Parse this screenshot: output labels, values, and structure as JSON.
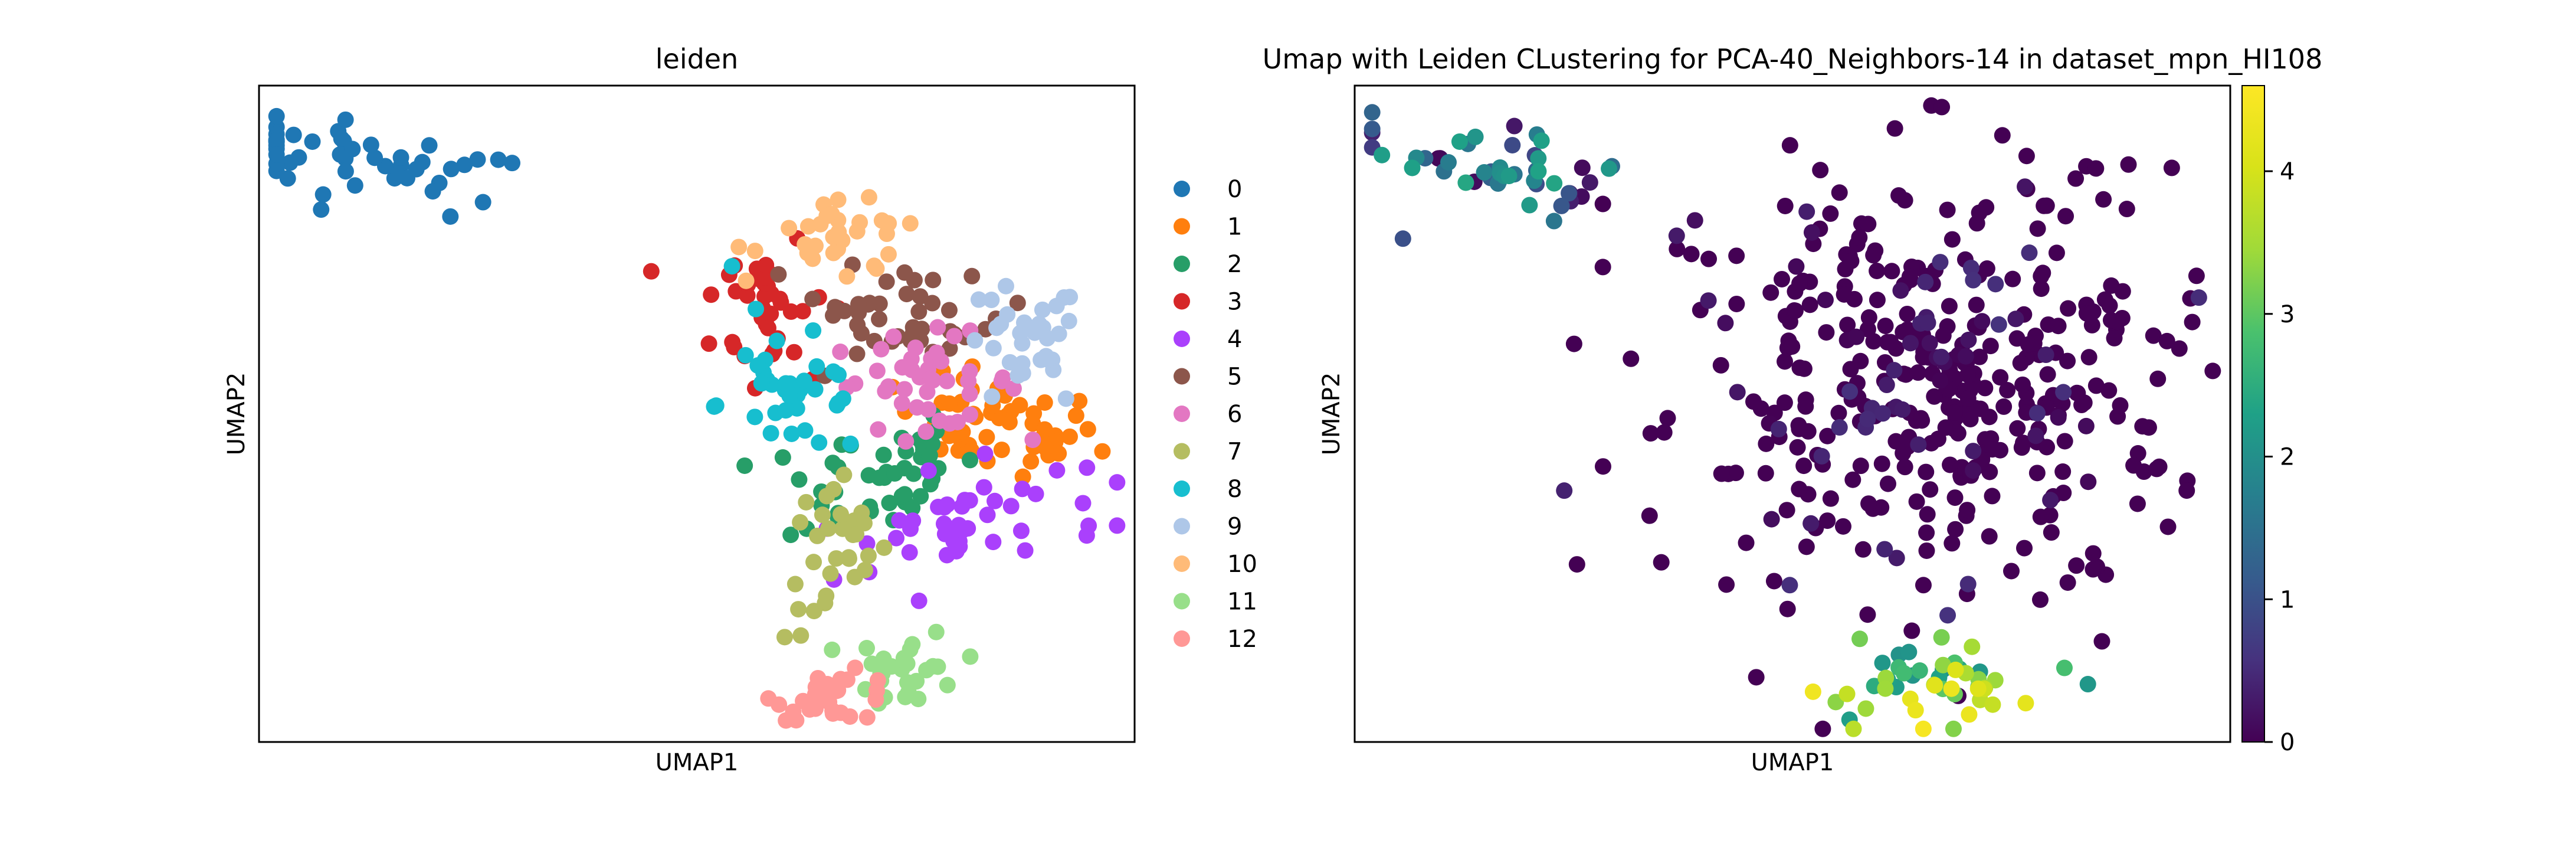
{
  "chart_data": [
    {
      "type": "scatter",
      "title": "leiden",
      "xlabel": "UMAP1",
      "ylabel": "UMAP2",
      "xlim": [
        0,
        100
      ],
      "ylim": [
        0,
        100
      ],
      "legend": {
        "placement": "right-outside",
        "entries": [
          "0",
          "1",
          "2",
          "3",
          "4",
          "5",
          "6",
          "7",
          "8",
          "9",
          "10",
          "11",
          "12"
        ],
        "colors": [
          "#1f77b4",
          "#ff7f0e",
          "#279e68",
          "#d62728",
          "#aa40fc",
          "#8c564b",
          "#e377c2",
          "#b5bd61",
          "#17becf",
          "#aec7e8",
          "#ffbb78",
          "#98df8a",
          "#ff9896"
        ]
      },
      "series": [
        {
          "name": "0",
          "count": 48,
          "center": [
            12,
            88
          ],
          "spread": [
            10,
            3.0
          ],
          "angle": -14
        },
        {
          "name": "1",
          "count": 55,
          "center": [
            84,
            48
          ],
          "spread": [
            6,
            3.5
          ],
          "angle": -8
        },
        {
          "name": "2",
          "count": 45,
          "center": [
            70,
            41
          ],
          "spread": [
            6,
            4.5
          ],
          "angle": 15
        },
        {
          "name": "3",
          "count": 38,
          "center": [
            58,
            67
          ],
          "spread": [
            3.5,
            6
          ],
          "angle": 10
        },
        {
          "name": "4",
          "count": 45,
          "center": [
            80,
            33
          ],
          "spread": [
            8,
            4
          ],
          "angle": 20
        },
        {
          "name": "5",
          "count": 42,
          "center": [
            74,
            65
          ],
          "spread": [
            5.5,
            3.5
          ],
          "angle": -20
        },
        {
          "name": "6",
          "count": 42,
          "center": [
            76,
            55
          ],
          "spread": [
            5.5,
            3.5
          ],
          "angle": 0
        },
        {
          "name": "7",
          "count": 32,
          "center": [
            66,
            28
          ],
          "spread": [
            3.0,
            6.5
          ],
          "angle": 0
        },
        {
          "name": "8",
          "count": 36,
          "center": [
            61,
            54
          ],
          "spread": [
            4.5,
            6
          ],
          "angle": 15
        },
        {
          "name": "9",
          "count": 32,
          "center": [
            87,
            60
          ],
          "spread": [
            3.5,
            5
          ],
          "angle": 0
        },
        {
          "name": "10",
          "count": 32,
          "center": [
            67,
            76
          ],
          "spread": [
            4.5,
            3.0
          ],
          "angle": -10
        },
        {
          "name": "11",
          "count": 30,
          "center": [
            74,
            11
          ],
          "spread": [
            3.0,
            3.0
          ],
          "angle": 0
        },
        {
          "name": "12",
          "count": 30,
          "center": [
            66,
            7
          ],
          "spread": [
            3.5,
            1.8
          ],
          "angle": 0
        }
      ]
    },
    {
      "type": "scatter",
      "title": "Umap with Leiden CLustering for PCA-40_Neighbors-14 in dataset_mpn_HI108",
      "xlabel": "UMAP1",
      "ylabel": "UMAP2",
      "xlim": [
        0,
        100
      ],
      "ylim": [
        0,
        100
      ],
      "color_scale": {
        "name": "viridis",
        "range": [
          0,
          4.6
        ],
        "ticks": [
          "0",
          "1",
          "2",
          "3",
          "4"
        ]
      },
      "groups": [
        {
          "label": "upper-left cluster",
          "count": 50,
          "center": [
            14,
            87
          ],
          "spread": [
            10,
            3.0
          ],
          "angle": -14,
          "value_range": [
            0,
            2.4
          ]
        },
        {
          "label": "main mass",
          "count": 420,
          "center": [
            65,
            55
          ],
          "spread": [
            14,
            16
          ],
          "angle": 0,
          "value_range": [
            0,
            0.6
          ]
        },
        {
          "label": "bottom cluster",
          "count": 50,
          "center": [
            67,
            10
          ],
          "spread": [
            6,
            3.5
          ],
          "angle": 10,
          "value_range": [
            2.0,
            4.5
          ]
        }
      ]
    }
  ]
}
